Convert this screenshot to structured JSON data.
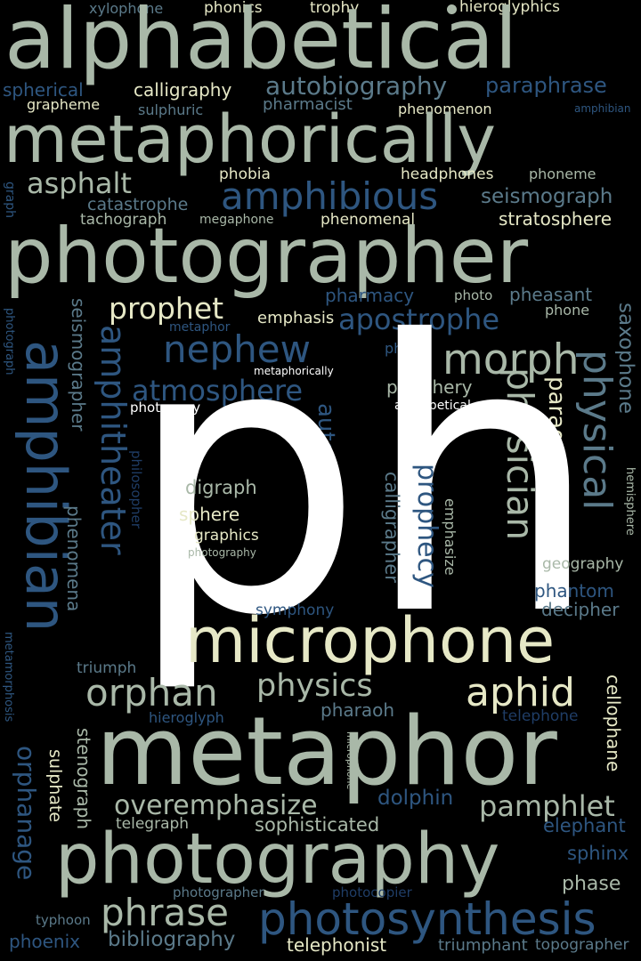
{
  "colors": {
    "background": "#000000",
    "white": "#ffffff",
    "cream": "#e6e8c6",
    "sage": "#a9b8a8",
    "slate": "#5b7a8a",
    "blue": "#2e5680",
    "navy": "#1f3d66"
  },
  "words": [
    {
      "text": "xylophone",
      "color": "#5b7a8a"
    },
    {
      "text": "phonics",
      "color": "#e6e8c6"
    },
    {
      "text": "trophy",
      "color": "#e6e8c6"
    },
    {
      "text": "hieroglyphics",
      "color": "#e6e8c6"
    },
    {
      "text": "alphabetical",
      "color": "#a9b8a8"
    },
    {
      "text": "spherical",
      "color": "#2e5680"
    },
    {
      "text": "calligraphy",
      "color": "#e6e8c6"
    },
    {
      "text": "autobiography",
      "color": "#5b7a8a"
    },
    {
      "text": "paraphrase",
      "color": "#2e5680"
    },
    {
      "text": "grapheme",
      "color": "#e6e8c6"
    },
    {
      "text": "sulphuric",
      "color": "#5b7a8a"
    },
    {
      "text": "pharmacist",
      "color": "#5b7a8a"
    },
    {
      "text": "phenomenon",
      "color": "#e6e8c6"
    },
    {
      "text": "amphibian",
      "color": "#2e5680"
    },
    {
      "text": "metaphorically",
      "color": "#a9b8a8"
    },
    {
      "text": "asphalt",
      "color": "#a9b8a8"
    },
    {
      "text": "phobia",
      "color": "#e6e8c6"
    },
    {
      "text": "headphones",
      "color": "#e6e8c6"
    },
    {
      "text": "phoneme",
      "color": "#a9b8a8"
    },
    {
      "text": "amphibious",
      "color": "#2e5680"
    },
    {
      "text": "seismograph",
      "color": "#5b7a8a"
    },
    {
      "text": "graph",
      "color": "#2e5680"
    },
    {
      "text": "catastrophe",
      "color": "#5b7a8a"
    },
    {
      "text": "tachograph",
      "color": "#a9b8a8"
    },
    {
      "text": "megaphone",
      "color": "#a9b8a8"
    },
    {
      "text": "phenomenal",
      "color": "#e6e8c6"
    },
    {
      "text": "stratosphere",
      "color": "#e6e8c6"
    },
    {
      "text": "photographer",
      "color": "#a9b8a8"
    },
    {
      "text": "pharmacy",
      "color": "#2e5680"
    },
    {
      "text": "photo",
      "color": "#a9b8a8"
    },
    {
      "text": "pheasant",
      "color": "#5b7a8a"
    },
    {
      "text": "prophet",
      "color": "#e6e8c6"
    },
    {
      "text": "phone",
      "color": "#a9b8a8"
    },
    {
      "text": "emphasis",
      "color": "#e6e8c6"
    },
    {
      "text": "apostrophe",
      "color": "#2e5680"
    },
    {
      "text": "photograph",
      "color": "#2e5680"
    },
    {
      "text": "metaphor",
      "color": "#2e5680"
    },
    {
      "text": "nephew",
      "color": "#2e5680"
    },
    {
      "text": "phew",
      "color": "#2e5680"
    },
    {
      "text": "morph",
      "color": "#a9b8a8"
    },
    {
      "text": "metaphorically",
      "color": "#ffffff"
    },
    {
      "text": "atmosphere",
      "color": "#2e5680"
    },
    {
      "text": "periphery",
      "color": "#a9b8a8"
    },
    {
      "text": "photocopy",
      "color": "#ffffff"
    },
    {
      "text": "alphabetical",
      "color": "#ffffff"
    },
    {
      "text": "seismographer",
      "color": "#5b7a8a"
    },
    {
      "text": "amphitheater",
      "color": "#2e5680"
    },
    {
      "text": "amphibian",
      "color": "#2e5680"
    },
    {
      "text": "physician",
      "color": "#a9b8a8"
    },
    {
      "text": "physical",
      "color": "#5b7a8a"
    },
    {
      "text": "saxophone",
      "color": "#5b7a8a"
    },
    {
      "text": "paragraph",
      "color": "#e6e8c6"
    },
    {
      "text": "autograph",
      "color": "#2e5680"
    },
    {
      "text": "philosopher",
      "color": "#1f3d66"
    },
    {
      "text": "hemisphere",
      "color": "#a9b8a8"
    },
    {
      "text": "ph",
      "color": "#ffffff"
    },
    {
      "text": "digraph",
      "color": "#a9b8a8"
    },
    {
      "text": "sphere",
      "color": "#e6e8c6"
    },
    {
      "text": "graphics",
      "color": "#e6e8c6"
    },
    {
      "text": "photography",
      "color": "#a9b8a8"
    },
    {
      "text": "prophecy",
      "color": "#2e5680"
    },
    {
      "text": "calligrapher",
      "color": "#5b7a8a"
    },
    {
      "text": "emphasize",
      "color": "#a9b8a8"
    },
    {
      "text": "phenomena",
      "color": "#5b7a8a"
    },
    {
      "text": "geography",
      "color": "#a9b8a8"
    },
    {
      "text": "phantom",
      "color": "#2e5680"
    },
    {
      "text": "decipher",
      "color": "#5b7a8a"
    },
    {
      "text": "symphony",
      "color": "#2e5680"
    },
    {
      "text": "microphone",
      "color": "#e6e8c6"
    },
    {
      "text": "triumph",
      "color": "#5b7a8a"
    },
    {
      "text": "metamorphosis",
      "color": "#2e5680"
    },
    {
      "text": "orphan",
      "color": "#a9b8a8"
    },
    {
      "text": "physics",
      "color": "#a9b8a8"
    },
    {
      "text": "aphid",
      "color": "#e6e8c6"
    },
    {
      "text": "pharaoh",
      "color": "#5b7a8a"
    },
    {
      "text": "hieroglyph",
      "color": "#2e5680"
    },
    {
      "text": "telephone",
      "color": "#1f3d66"
    },
    {
      "text": "cellophane",
      "color": "#e6e8c6"
    },
    {
      "text": "metaphor",
      "color": "#a9b8a8"
    },
    {
      "text": "microphone",
      "color": "#a9b8a8"
    },
    {
      "text": "orphanage",
      "color": "#2e5680"
    },
    {
      "text": "sulphate",
      "color": "#e6e8c6"
    },
    {
      "text": "stenograph",
      "color": "#a9b8a8"
    },
    {
      "text": "overemphasize",
      "color": "#a9b8a8"
    },
    {
      "text": "dolphin",
      "color": "#2e5680"
    },
    {
      "text": "pamphlet",
      "color": "#a9b8a8"
    },
    {
      "text": "telegraph",
      "color": "#a9b8a8"
    },
    {
      "text": "sophisticated",
      "color": "#a9b8a8"
    },
    {
      "text": "elephant",
      "color": "#2e5680"
    },
    {
      "text": "photography",
      "color": "#a9b8a8"
    },
    {
      "text": "sphinx",
      "color": "#2e5680"
    },
    {
      "text": "phase",
      "color": "#a9b8a8"
    },
    {
      "text": "photographer",
      "color": "#5b7a8a"
    },
    {
      "text": "photocopier",
      "color": "#1f3d66"
    },
    {
      "text": "phrase",
      "color": "#a9b8a8"
    },
    {
      "text": "typhoon",
      "color": "#5b7a8a"
    },
    {
      "text": "photosynthesis",
      "color": "#2e5680"
    },
    {
      "text": "phoenix",
      "color": "#2e5680"
    },
    {
      "text": "bibliography",
      "color": "#5b7a8a"
    },
    {
      "text": "telephonist",
      "color": "#e6e8c6"
    },
    {
      "text": "triumphant",
      "color": "#5b7a8a"
    },
    {
      "text": "topographer",
      "color": "#5b7a8a"
    }
  ]
}
